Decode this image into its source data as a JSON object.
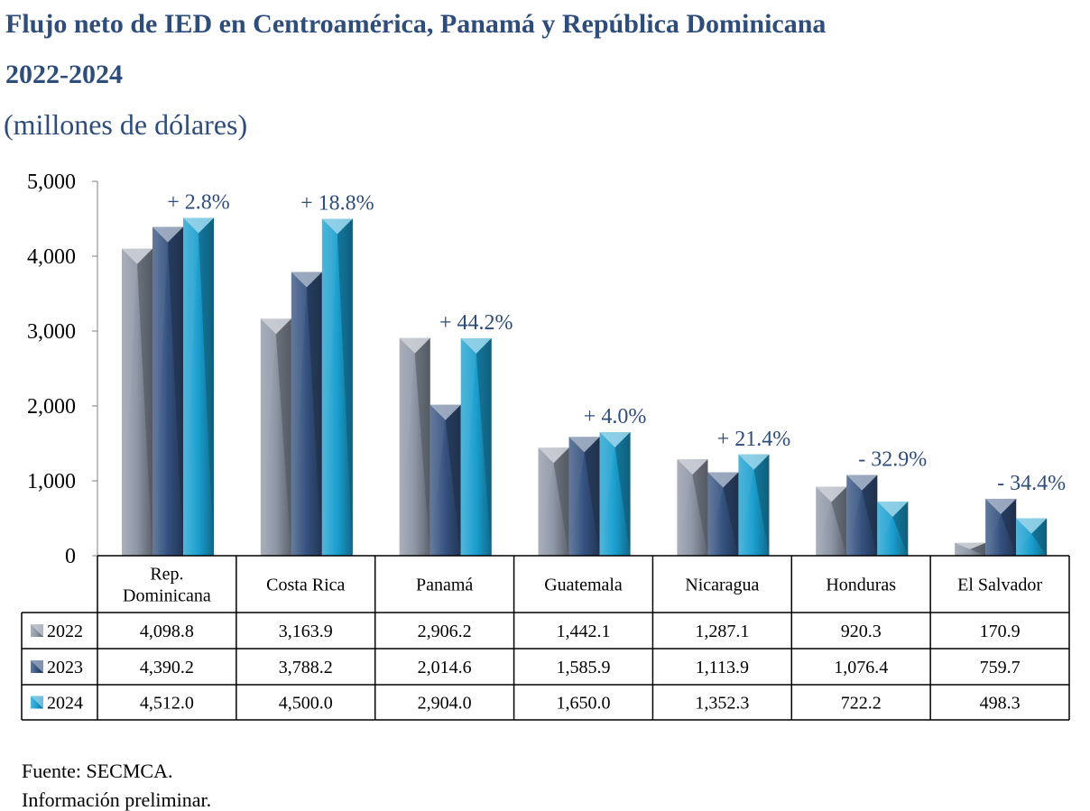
{
  "header": {
    "title_line1": "Flujo neto de IED en Centroamérica, Panamá y República Dominicana",
    "title_line2": "2022-2024",
    "subtitle": "(millones de dólares)"
  },
  "footer": {
    "source": "Fuente: SECMCA.",
    "note": "Información preliminar."
  },
  "chart_data": {
    "type": "bar",
    "title": "Flujo neto de IED en Centroamérica, Panamá y República Dominicana 2022-2024",
    "subtitle": "(millones de dólares)",
    "categories": [
      [
        "Rep.",
        "Dominicana"
      ],
      [
        "Costa Rica"
      ],
      [
        "Panamá"
      ],
      [
        "Guatemala"
      ],
      [
        "Nicaragua"
      ],
      [
        "Honduras"
      ],
      [
        "El Salvador"
      ]
    ],
    "series": [
      {
        "name": "2022",
        "color": "#8e97a6",
        "values": [
          4098.8,
          3163.9,
          2906.2,
          1442.1,
          1287.1,
          920.3,
          170.9
        ],
        "labels": [
          "4,098.8",
          "3,163.9",
          "2,906.2",
          "1,442.1",
          "1,287.1",
          "920.3",
          "170.9"
        ]
      },
      {
        "name": "2023",
        "color": "#34517f",
        "values": [
          4390.2,
          3788.2,
          2014.6,
          1585.9,
          1113.9,
          1076.4,
          759.7
        ],
        "labels": [
          "4,390.2",
          "3,788.2",
          "2,014.6",
          "1,585.9",
          "1,113.9",
          "1,076.4",
          "759.7"
        ]
      },
      {
        "name": "2024",
        "color": "#1a9fcf",
        "values": [
          4512.0,
          4500.0,
          2904.0,
          1650.0,
          1352.3,
          722.2,
          498.3
        ],
        "labels": [
          "4,512.0",
          "4,500.0",
          "2,904.0",
          "1,650.0",
          "1,352.3",
          "722.2",
          "498.3"
        ]
      }
    ],
    "annotations": [
      "+ 2.8%",
      "+ 18.8%",
      "+ 44.2%",
      "+ 4.0%",
      "+ 21.4%",
      "- 32.9%",
      "- 34.4%"
    ],
    "yticks": [
      "0",
      "1,000",
      "2,000",
      "3,000",
      "4,000",
      "5,000"
    ],
    "ytick_values": [
      0,
      1000,
      2000,
      3000,
      4000,
      5000
    ],
    "ylim": [
      0,
      5000
    ],
    "grid": false,
    "legend": "data table below chart"
  }
}
